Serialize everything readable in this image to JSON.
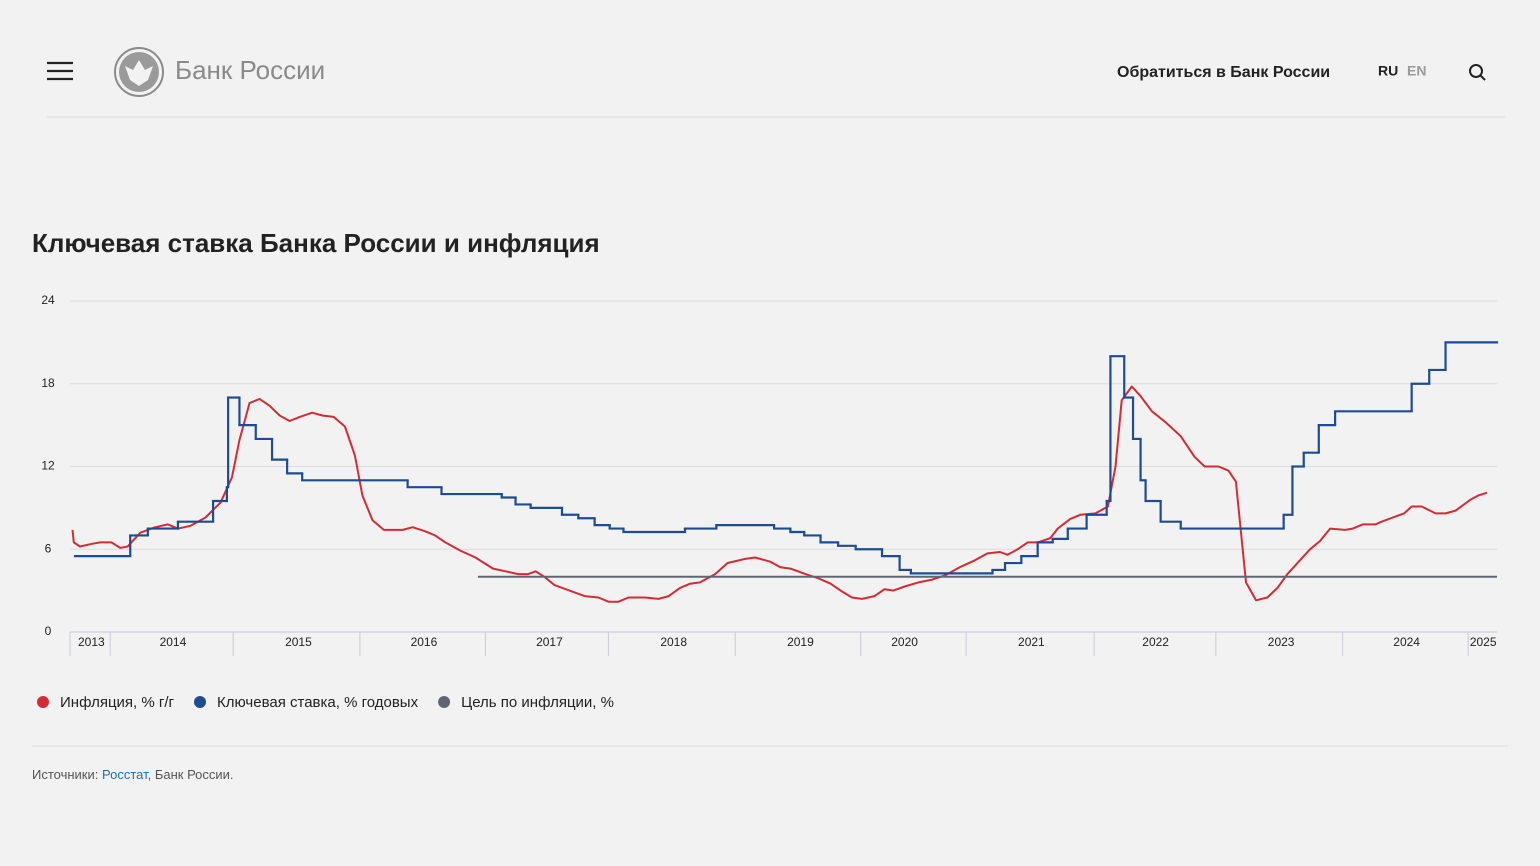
{
  "header": {
    "brand": "Банк России",
    "contact": "Обратиться в Банк России",
    "lang_active": "RU",
    "lang_other": "EN"
  },
  "chart_data": {
    "type": "line",
    "title": "Ключевая ставка Банка России и инфляция",
    "xlim": [
      2013.68,
      2025.05
    ],
    "ylim": [
      0,
      24
    ],
    "yticks": [
      0,
      6,
      12,
      18,
      24
    ],
    "grid": true,
    "xticks": [
      {
        "value": 2013.85,
        "label": "2013"
      },
      {
        "value": 2014.5,
        "label": "2014"
      },
      {
        "value": 2015.5,
        "label": "2015"
      },
      {
        "value": 2016.5,
        "label": "2016"
      },
      {
        "value": 2017.5,
        "label": "2017"
      },
      {
        "value": 2018.49,
        "label": "2018"
      },
      {
        "value": 2019.5,
        "label": "2019"
      },
      {
        "value": 2020.33,
        "label": "2020"
      },
      {
        "value": 2021.34,
        "label": "2021"
      },
      {
        "value": 2022.33,
        "label": "2022"
      },
      {
        "value": 2023.33,
        "label": "2023"
      },
      {
        "value": 2024.33,
        "label": "2024"
      },
      {
        "value": 2024.94,
        "label": "2025"
      }
    ],
    "xgrid": [
      2014.0,
      2014.98,
      2015.99,
      2016.99,
      2017.97,
      2018.98,
      2019.98,
      2020.82,
      2021.84,
      2022.81,
      2023.82,
      2024.82
    ],
    "legend": "bottom-left",
    "series": [
      {
        "name": "Инфляция, % г/г",
        "color": "#d52b35",
        "x": [
          2013.7,
          2013.71,
          2013.76,
          2013.86,
          2013.92,
          2014.01,
          2014.08,
          2014.14,
          2014.24,
          2014.36,
          2014.46,
          2014.54,
          2014.64,
          2014.76,
          2014.88,
          2014.97,
          2015.03,
          2015.11,
          2015.19,
          2015.27,
          2015.35,
          2015.43,
          2015.51,
          2015.61,
          2015.69,
          2015.78,
          2015.87,
          2015.95,
          2016.01,
          2016.09,
          2016.18,
          2016.33,
          2016.41,
          2016.51,
          2016.59,
          2016.67,
          2016.79,
          2016.91,
          2017.05,
          2017.15,
          2017.25,
          2017.33,
          2017.39,
          2017.46,
          2017.54,
          2017.66,
          2017.78,
          2017.89,
          2017.97,
          2018.05,
          2018.13,
          2018.26,
          2018.37,
          2018.45,
          2018.54,
          2018.62,
          2018.7,
          2018.82,
          2018.92,
          2019.06,
          2019.14,
          2019.26,
          2019.34,
          2019.42,
          2019.54,
          2019.64,
          2019.74,
          2019.82,
          2019.91,
          2019.99,
          2020.09,
          2020.17,
          2020.24,
          2020.33,
          2020.44,
          2020.55,
          2020.65,
          2020.77,
          2020.89,
          2020.99,
          2021.09,
          2021.15,
          2021.23,
          2021.31,
          2021.39,
          2021.49,
          2021.55,
          2021.65,
          2021.73,
          2021.85,
          2021.95,
          2022.01,
          2022.06,
          2022.14,
          2022.21,
          2022.3,
          2022.41,
          2022.53,
          2022.64,
          2022.72,
          2022.83,
          2022.91,
          2022.97,
          2023.05,
          2023.13,
          2023.22,
          2023.3,
          2023.38,
          2023.47,
          2023.56,
          2023.64,
          2023.72,
          2023.84,
          2023.9,
          2023.98,
          2024.08,
          2024.13,
          2024.22,
          2024.31,
          2024.37,
          2024.45,
          2024.56,
          2024.64,
          2024.72,
          2024.84,
          2024.9,
          2024.97
        ],
        "values": [
          7.4,
          6.5,
          6.2,
          6.4,
          6.5,
          6.5,
          6.1,
          6.2,
          7.2,
          7.6,
          7.8,
          7.5,
          7.7,
          8.3,
          9.4,
          11.2,
          13.9,
          16.6,
          16.9,
          16.4,
          15.7,
          15.3,
          15.6,
          15.9,
          15.7,
          15.6,
          14.9,
          12.8,
          9.9,
          8.1,
          7.4,
          7.4,
          7.6,
          7.3,
          7.0,
          6.5,
          5.9,
          5.4,
          4.6,
          4.4,
          4.2,
          4.2,
          4.4,
          4.0,
          3.4,
          3.0,
          2.6,
          2.5,
          2.2,
          2.2,
          2.5,
          2.5,
          2.4,
          2.6,
          3.2,
          3.5,
          3.6,
          4.2,
          5.0,
          5.3,
          5.4,
          5.1,
          4.7,
          4.6,
          4.2,
          3.9,
          3.5,
          3.0,
          2.5,
          2.4,
          2.6,
          3.1,
          3.0,
          3.3,
          3.6,
          3.8,
          4.1,
          4.7,
          5.2,
          5.7,
          5.8,
          5.6,
          6.0,
          6.5,
          6.5,
          6.8,
          7.5,
          8.2,
          8.5,
          8.6,
          9.1,
          12.0,
          16.8,
          17.8,
          17.1,
          16.0,
          15.2,
          14.2,
          12.7,
          12.0,
          12.0,
          11.7,
          10.9,
          3.6,
          2.3,
          2.5,
          3.2,
          4.2,
          5.1,
          6.0,
          6.6,
          7.5,
          7.4,
          7.5,
          7.8,
          7.8,
          8.0,
          8.3,
          8.6,
          9.1,
          9.1,
          8.6,
          8.6,
          8.8,
          9.6,
          9.9,
          10.1
        ]
      },
      {
        "name": "Ключевая ставка, % годовых",
        "color": "#1d4b94",
        "step": true,
        "x": [
          2013.72,
          2014.16,
          2014.3,
          2014.54,
          2014.82,
          2014.93,
          2014.94,
          2015.03,
          2015.16,
          2015.29,
          2015.41,
          2015.53,
          2016.37,
          2016.64,
          2017.12,
          2017.23,
          2017.35,
          2017.6,
          2017.73,
          2017.86,
          2017.98,
          2018.09,
          2018.58,
          2018.83,
          2019.29,
          2019.42,
          2019.53,
          2019.66,
          2019.8,
          2019.94,
          2020.15,
          2020.29,
          2020.38,
          2021.03,
          2021.13,
          2021.26,
          2021.39,
          2021.51,
          2021.63,
          2021.78,
          2021.94,
          2021.97,
          2022.08,
          2022.15,
          2022.21,
          2022.25,
          2022.37,
          2022.53,
          2023.35,
          2023.42,
          2023.51,
          2023.63,
          2023.76,
          2024.37,
          2024.51,
          2024.64
        ],
        "values": [
          5.5,
          7,
          7.5,
          8,
          9.5,
          10.5,
          17,
          15,
          14,
          12.5,
          11.5,
          11,
          10.5,
          10,
          9.75,
          9.25,
          9,
          8.5,
          8.25,
          7.75,
          7.5,
          7.25,
          7.5,
          7.75,
          7.5,
          7.25,
          7,
          6.5,
          6.25,
          6,
          5.5,
          4.5,
          4.25,
          4.5,
          5,
          5.5,
          6.5,
          6.75,
          7.5,
          8.5,
          9.5,
          20,
          17,
          14,
          11,
          9.5,
          8,
          7.5,
          8.5,
          12,
          13,
          15,
          16,
          18,
          19,
          21
        ]
      },
      {
        "name": "Цель по инфляции, %",
        "color": "#5f6672",
        "x": [
          2016.93,
          2025.05
        ],
        "values": [
          4,
          4
        ]
      }
    ]
  },
  "sources": {
    "label": "Источники:",
    "link": "Росстат",
    "rest": ", Банк России."
  }
}
